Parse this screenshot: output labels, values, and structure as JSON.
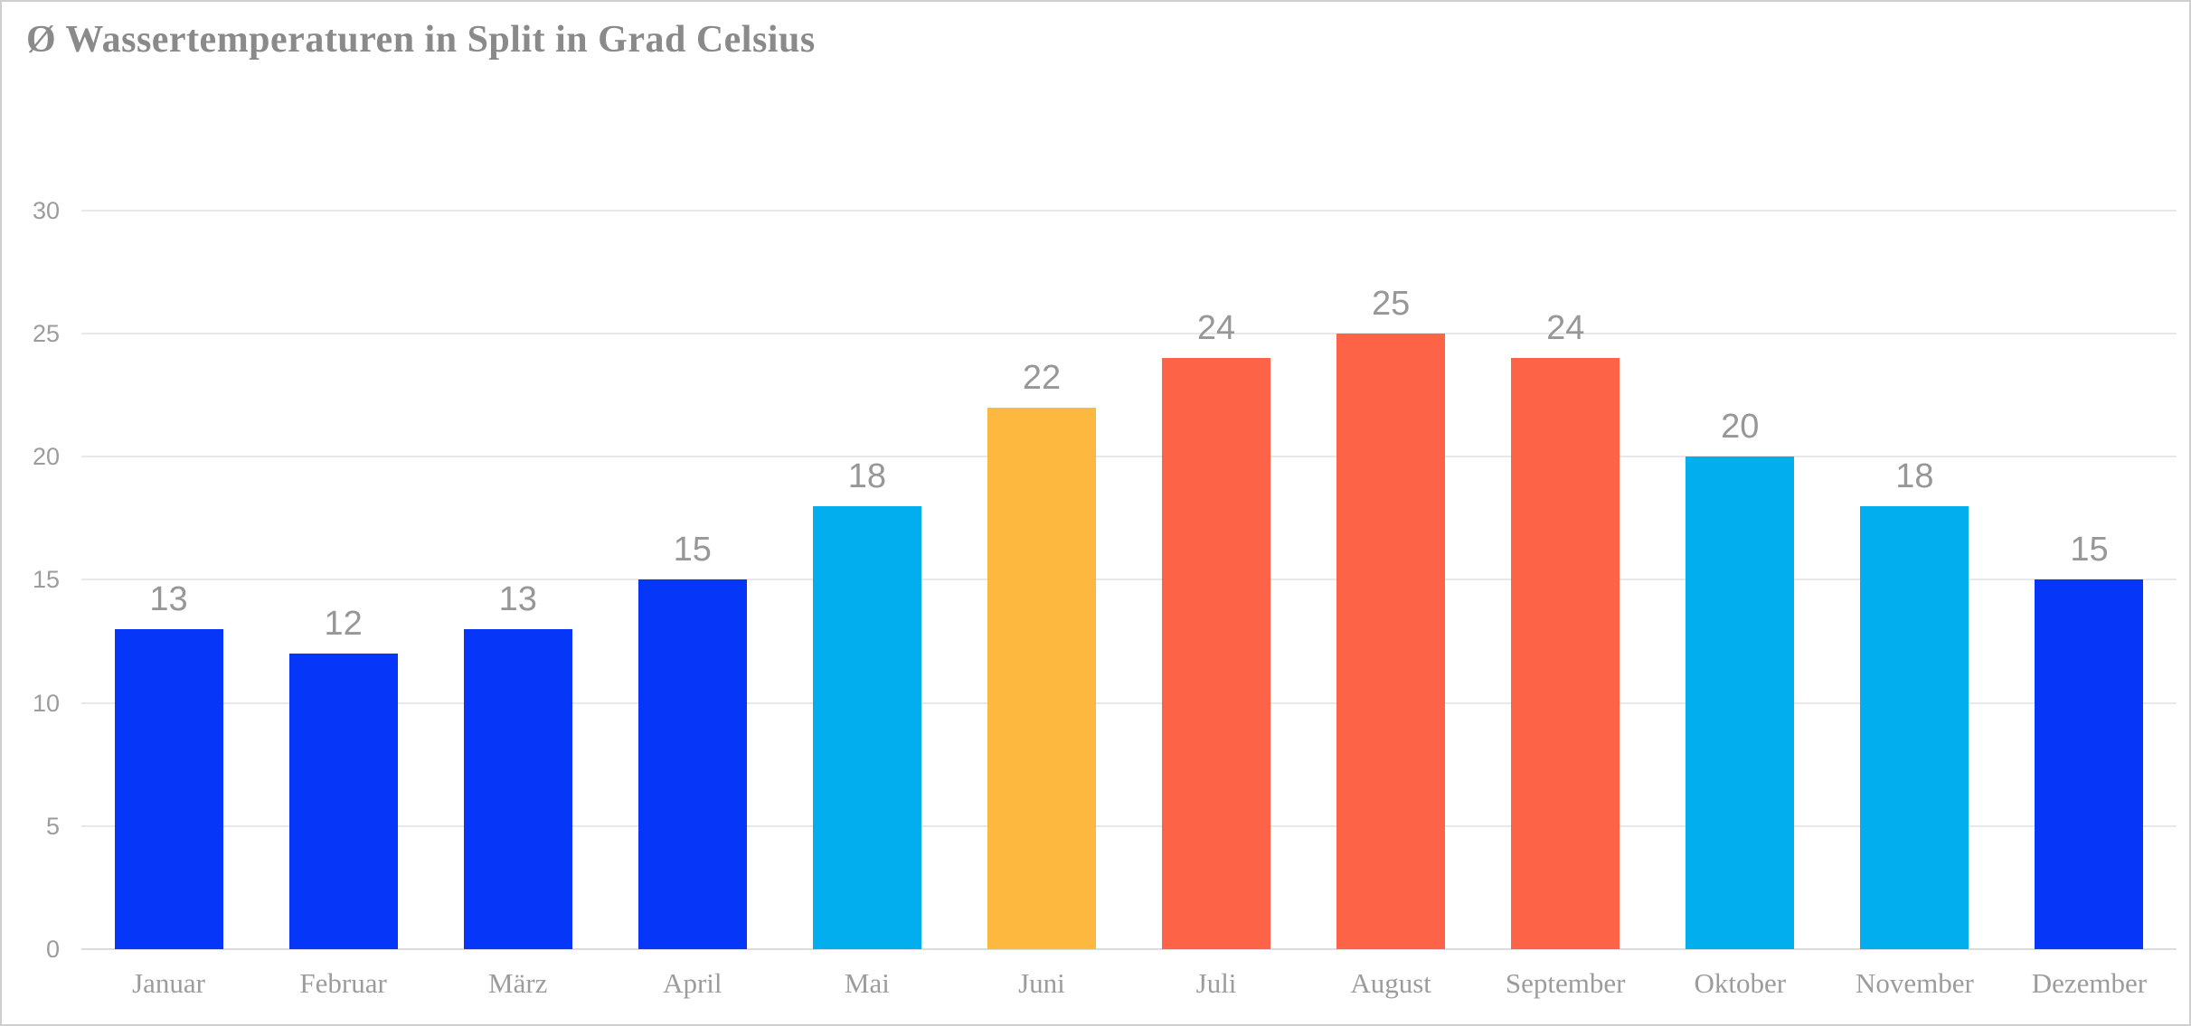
{
  "page": {
    "background": "#FFFFFF",
    "border_color": "#CFCFCF"
  },
  "chart_data": {
    "type": "bar",
    "title": "Ø Wassertemperaturen in Split in Grad Celsius",
    "xlabel": "",
    "ylabel": "",
    "categories": [
      "Januar",
      "Februar",
      "März",
      "April",
      "Mai",
      "Juni",
      "Juli",
      "August",
      "September",
      "Oktober",
      "November",
      "Dezember"
    ],
    "values": [
      13,
      12,
      13,
      15,
      18,
      22,
      24,
      25,
      24,
      20,
      18,
      15
    ],
    "data_labels": [
      "13",
      "12",
      "13",
      "15",
      "18",
      "22",
      "24",
      "25",
      "24",
      "20",
      "18",
      "15"
    ],
    "bar_colors": [
      "#0636F8",
      "#0636F8",
      "#0636F8",
      "#0636F8",
      "#02AEEE",
      "#FDB840",
      "#FD6347",
      "#FD6347",
      "#FD6347",
      "#02AEEE",
      "#02AEEE",
      "#0636F8"
    ],
    "y_ticks": [
      0,
      5,
      10,
      15,
      20,
      25,
      30
    ],
    "ylim": [
      0,
      30
    ],
    "grid": true,
    "legend": false,
    "colors": {
      "title_text": "#8A8A8A",
      "axis_text": "#9C9C9C",
      "data_label_text": "#979797",
      "gridline": "#E8E8E8",
      "axis_line": "#DCDCDC",
      "bar_blue": "#0636F8",
      "bar_cyan": "#02AEEE",
      "bar_amber": "#FDB840",
      "bar_tomato": "#FD6347"
    }
  }
}
